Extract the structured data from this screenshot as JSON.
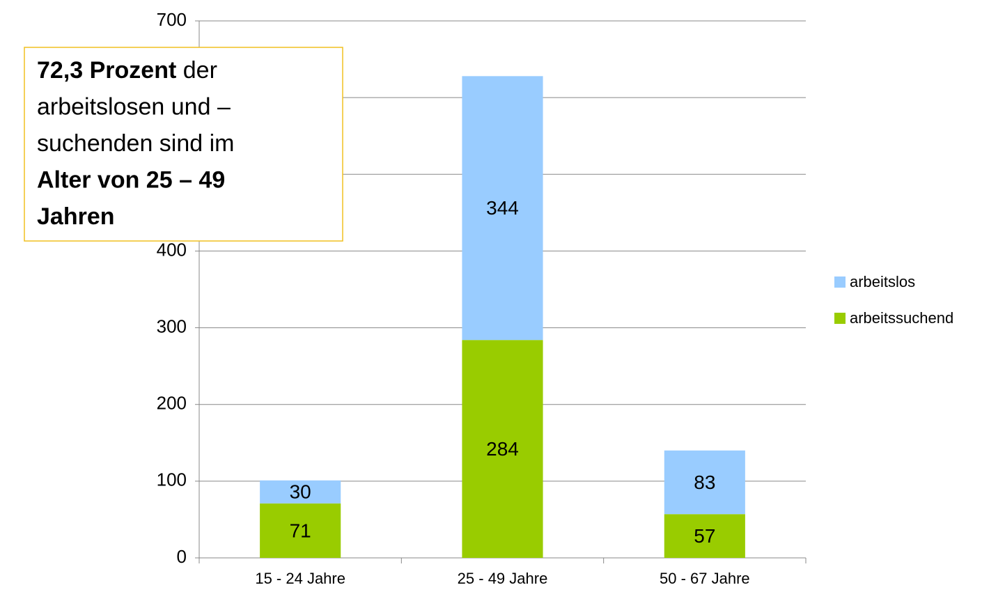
{
  "chart_data": {
    "type": "stacked_bar",
    "categories": [
      "15 - 24 Jahre",
      "25 - 49 Jahre",
      "50 - 67 Jahre"
    ],
    "series": [
      {
        "name": "arbeitssuchend",
        "color": "#99cc00",
        "values": [
          71,
          284,
          57
        ]
      },
      {
        "name": "arbeitslos",
        "color": "#99ccff",
        "values": [
          30,
          344,
          83
        ]
      }
    ],
    "ylim": [
      0,
      700
    ],
    "yticks": [
      0,
      100,
      200,
      300,
      400,
      500,
      600,
      700
    ],
    "grid": true,
    "legend": "right",
    "annotation": {
      "lines": [
        [
          {
            "text": "72,3 Prozent",
            "bold": true
          },
          {
            "text": " der",
            "bold": false
          }
        ],
        [
          {
            "text": "arbeitslosen und –",
            "bold": false
          }
        ],
        [
          {
            "text": "suchenden sind im",
            "bold": false
          }
        ],
        [
          {
            "text": "Alter von 25 – 49",
            "bold": true
          }
        ],
        [
          {
            "text": "Jahren",
            "bold": true
          }
        ]
      ]
    }
  }
}
